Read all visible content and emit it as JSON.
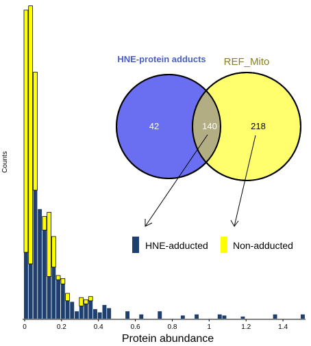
{
  "chart_data": {
    "type": "bar",
    "stacked": true,
    "xlabel": "Protein abundance",
    "ylabel": "Counts",
    "xlim": [
      0,
      1.5
    ],
    "x_ticks": [
      "0",
      "0.2",
      "0.4",
      "0.6",
      "0.8",
      "1",
      "1.2",
      "1.4"
    ],
    "bin_width": 0.025,
    "grid": false,
    "legend_position": "center-right, below Venn diagram",
    "series": [
      {
        "name": "HNE-adducted",
        "color": "#1f3f6e",
        "points": [
          [
            0.0,
            63
          ],
          [
            0.025,
            52
          ],
          [
            0.05,
            122
          ],
          [
            0.075,
            104
          ],
          [
            0.1,
            84
          ],
          [
            0.125,
            40
          ],
          [
            0.15,
            49
          ],
          [
            0.175,
            37
          ],
          [
            0.2,
            33
          ],
          [
            0.225,
            17
          ],
          [
            0.25,
            16
          ],
          [
            0.275,
            7
          ],
          [
            0.3,
            12
          ],
          [
            0.325,
            14
          ],
          [
            0.35,
            17
          ],
          [
            0.375,
            9
          ],
          [
            0.4,
            6
          ],
          [
            0.425,
            13
          ],
          [
            0.45,
            10
          ],
          [
            0.55,
            7
          ],
          [
            0.625,
            4
          ],
          [
            0.725,
            7
          ],
          [
            0.85,
            3
          ],
          [
            0.925,
            4
          ],
          [
            1.05,
            4
          ],
          [
            1.075,
            3
          ],
          [
            1.175,
            2
          ],
          [
            1.35,
            4
          ],
          [
            1.5,
            4
          ]
        ]
      },
      {
        "name": "Non-adducted",
        "color": "#ffff00",
        "points": [
          [
            0.0,
            230
          ],
          [
            0.025,
            245
          ],
          [
            0.05,
            112
          ],
          [
            0.075,
            0
          ],
          [
            0.1,
            13
          ],
          [
            0.125,
            61
          ],
          [
            0.15,
            29
          ],
          [
            0.175,
            4
          ],
          [
            0.2,
            5
          ],
          [
            0.225,
            7
          ],
          [
            0.25,
            0
          ],
          [
            0.275,
            0
          ],
          [
            0.3,
            8
          ],
          [
            0.325,
            4
          ],
          [
            0.35,
            4
          ],
          [
            0.375,
            0
          ],
          [
            0.4,
            0
          ],
          [
            0.425,
            0
          ],
          [
            0.45,
            0
          ],
          [
            0.55,
            0
          ],
          [
            0.625,
            0
          ],
          [
            0.725,
            0
          ],
          [
            0.85,
            0
          ],
          [
            0.925,
            0
          ],
          [
            1.05,
            0
          ],
          [
            1.075,
            0
          ],
          [
            1.175,
            0
          ],
          [
            1.35,
            0
          ],
          [
            1.5,
            0
          ]
        ]
      }
    ],
    "venn": {
      "set_a": {
        "label": "HNE-protein adducts",
        "label_color": "#4a5fc4",
        "fill": "#6a6ef0",
        "only": "42"
      },
      "set_b": {
        "label": "REF_Mito",
        "label_color": "#8a7f1c",
        "fill": "#ffff6e",
        "only": "218"
      },
      "overlap": {
        "value": "140",
        "fill": "#b3ad84"
      }
    }
  }
}
